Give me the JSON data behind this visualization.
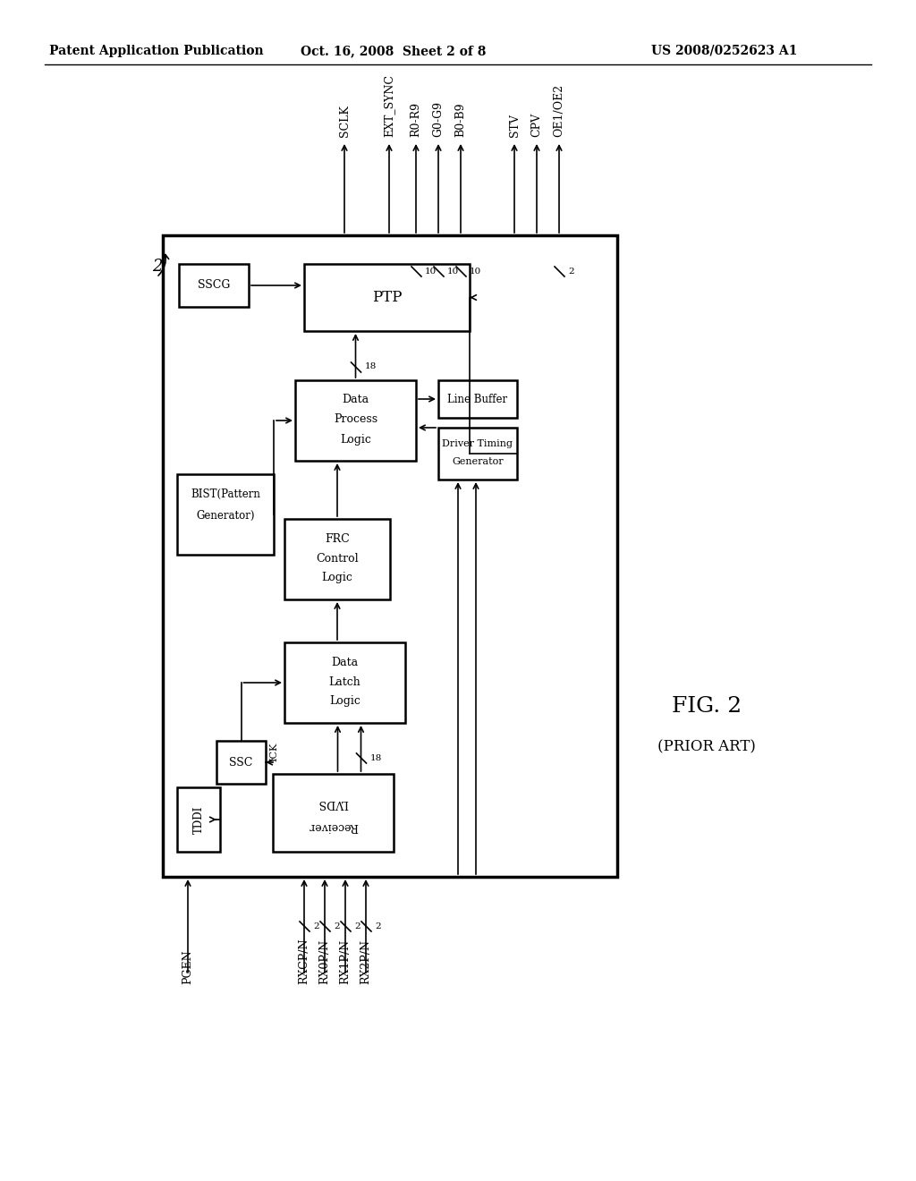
{
  "title_left": "Patent Application Publication",
  "title_mid": "Oct. 16, 2008  Sheet 2 of 8",
  "title_right": "US 2008/0252623 A1",
  "fig_label": "FIG. 2",
  "fig_sublabel": "(PRIOR ART)",
  "background": "#ffffff",
  "text_color": "#000000"
}
